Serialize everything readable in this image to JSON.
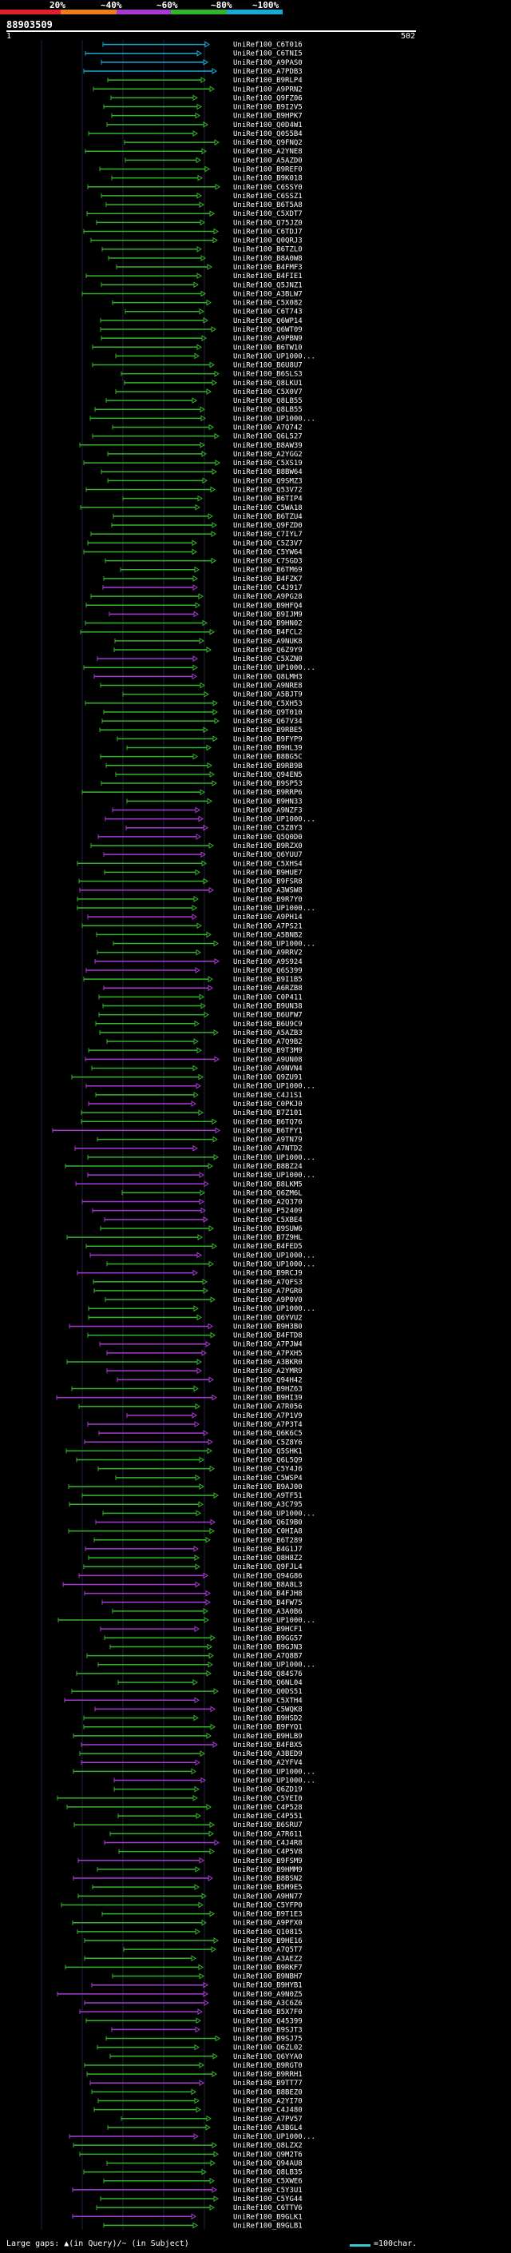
{
  "header": {
    "percent_labels": [
      "20%",
      "~40%",
      "~60%",
      "~80%",
      "~100%"
    ],
    "percent_colors": [
      "#e0202b",
      "#f07c1c",
      "#a73ad4",
      "#33b52a",
      "#1aa8d6"
    ],
    "query_id": "88903509",
    "ruler_start": "1",
    "ruler_end": "502"
  },
  "footer": {
    "left_text": "Large gaps: ▲(in Query)/~ (in Subject)",
    "right_text": "=100char."
  },
  "hits": [
    "UniRef100_C6T016",
    "UniRef100_C6TNI5",
    "UniRef100_A9PAS0",
    "UniRef100_A7PDB3",
    "UniRef100_B9RLP4",
    "UniRef100_A9PRN2",
    "UniRef100_Q9FZ06",
    "UniRef100_B9I2V5",
    "UniRef100_B9HPK7",
    "UniRef100_Q0D4W1",
    "UniRef100_Q0S5B4",
    "UniRef100_Q9FNQ2",
    "UniRef100_A2YNE8",
    "UniRef100_A5AZD0",
    "UniRef100_B9REF0",
    "UniRef100_B9K018",
    "UniRef100_C6SSY0",
    "UniRef100_C6SSZ1",
    "UniRef100_B6T5A8",
    "UniRef100_C5XDT7",
    "UniRef100_Q75JZ0",
    "UniRef100_C6TDJ7",
    "UniRef100_Q0QRJ3",
    "UniRef100_B6TZL0",
    "UniRef100_B8A0W8",
    "UniRef100_B4FMF3",
    "UniRef100_B4FIE1",
    "UniRef100_Q5JNZ1",
    "UniRef100_A3BLW7",
    "UniRef100_C5X082",
    "UniRef100_C6T743",
    "UniRef100_Q6WP14",
    "UniRef100_Q6WT09",
    "UniRef100_A9PBN9",
    "UniRef100_B6TW10",
    "UniRef100_UP1000...",
    "UniRef100_B6U8U7",
    "UniRef100_B6SLS3",
    "UniRef100_Q8LKU1",
    "UniRef100_C5X0V7",
    "UniRef100_Q8LB55",
    "UniRef100_Q8LB55",
    "UniRef100_UP1000...",
    "UniRef100_A7Q742",
    "UniRef100_Q6L527",
    "UniRef100_B8AW39",
    "UniRef100_A2YGG2",
    "UniRef100_C5XS19",
    "UniRef100_B8BW64",
    "UniRef100_Q9SMZ3",
    "UniRef100_Q53V72",
    "UniRef100_B6TIP4",
    "UniRef100_C5WA18",
    "UniRef100_B6TZU4",
    "UniRef100_Q9FZD0",
    "UniRef100_C7IYL7",
    "UniRef100_C5Z3V7",
    "UniRef100_C5YW64",
    "UniRef100_C7SGD3",
    "UniRef100_B6TM69",
    "UniRef100_B4FZK7",
    "UniRef100_C4J917",
    "UniRef100_A9PG28",
    "UniRef100_B9HFQ4",
    "UniRef100_B9IJM9",
    "UniRef100_B9HN02",
    "UniRef100_B4FCL2",
    "UniRef100_A9NUK8",
    "UniRef100_Q6Z9Y9",
    "UniRef100_C5XZN0",
    "UniRef100_UP1000...",
    "UniRef100_Q8LMH3",
    "UniRef100_A9NRE8",
    "UniRef100_A5BJT9",
    "UniRef100_C5XH53",
    "UniRef100_Q9T010",
    "UniRef100_Q67V34",
    "UniRef100_B9RBE5",
    "UniRef100_B9FYP9",
    "UniRef100_B9HL39",
    "UniRef100_B8BG5C",
    "UniRef100_B9RB9B",
    "UniRef100_Q94EN5",
    "UniRef100_B9SP53",
    "UniRef100_B9RRP6",
    "UniRef100_B9HN33",
    "UniRef100_A9NZF3",
    "UniRef100_UP1000...",
    "UniRef100_C5Z8Y3",
    "UniRef100_Q5Q0D0",
    "UniRef100_B9RZX0",
    "UniRef100_Q6YUU7",
    "UniRef100_C5XHS4",
    "UniRef100_B9HUE7",
    "UniRef100_B9FSR8",
    "UniRef100_A3WSW8",
    "UniRef100_B9R7Y0",
    "UniRef100_UP1000...",
    "UniRef100_A9PH14",
    "UniRef100_A7PS21",
    "UniRef100_A5BNB2",
    "UniRef100_UP1000...",
    "UniRef100_A9RRV2",
    "UniRef100_A9S924",
    "UniRef100_Q6S399",
    "UniRef100_B9I1B5",
    "UniRef100_A6RZB8",
    "UniRef100_C0P411",
    "UniRef100_B9UN38",
    "UniRef100_B6UFW7",
    "UniRef100_B6U9C9",
    "UniRef100_A5AZB3",
    "UniRef100_A7Q9B2",
    "UniRef100_B9T3M9",
    "UniRef100_A9UN08",
    "UniRef100_A9NVN4",
    "UniRef100_Q9ZU91",
    "UniRef100_UP1000...",
    "UniRef100_C4J1S1",
    "UniRef100_C0PKJ0",
    "UniRef100_B7Z101",
    "UniRef100_B6TQ76",
    "UniRef100_B6TFY1",
    "UniRef100_A9TN79",
    "UniRef100_A7NTD2",
    "UniRef100_UP1000...",
    "UniRef100_B8BZ24",
    "UniRef100_UP1000...",
    "UniRef100_B8LKM5",
    "UniRef100_Q6ZM6L",
    "UniRef100_A2Q370",
    "UniRef100_P52409",
    "UniRef100_C5XBE4",
    "UniRef100_B9SUW6",
    "UniRef100_B7Z9HL",
    "UniRef100_B4FED5",
    "UniRef100_UP1000...",
    "UniRef100_UP1000...",
    "UniRef100_B9RCJ9",
    "UniRef100_A7QFS3",
    "UniRef100_A7PGR0",
    "UniRef100_A9P0V0",
    "UniRef100_UP1000...",
    "UniRef100_Q6YVU2",
    "UniRef100_B9H3B0",
    "UniRef100_B4FTD8",
    "UniRef100_A7PJW4",
    "UniRef100_A7PXH5",
    "UniRef100_A3BKR0",
    "UniRef100_A2YMR9",
    "UniRef100_Q94H42",
    "UniRef100_B9HZ63",
    "UniRef100_B9HI39",
    "UniRef100_A7R056",
    "UniRef100_A7P1V9",
    "UniRef100_A7P3T4",
    "UniRef100_Q6K6C5",
    "UniRef100_C5Z8Y6",
    "UniRef100_Q5SHK1",
    "UniRef100_Q6L5Q9",
    "UniRef100_C5Y4J6",
    "UniRef100_C5WSP4",
    "UniRef100_B9AJ00",
    "UniRef100_A9TF51",
    "UniRef100_A3C795",
    "UniRef100_UP1000...",
    "UniRef100_Q6I9B0",
    "UniRef100_C0HIA8",
    "UniRef100_B6T289",
    "UniRef100_B4G1J7",
    "UniRef100_Q8H8Z2",
    "UniRef100_Q9FJL4",
    "UniRef100_Q94G86",
    "UniRef100_B8A8L3",
    "UniRef100_B4FJH8",
    "UniRef100_B4FW75",
    "UniRef100_A3A0B6",
    "UniRef100_UP1000...",
    "UniRef100_B9HCF1",
    "UniRef100_B9GG57",
    "UniRef100_B9GJN3",
    "UniRef100_A7Q8B7",
    "UniRef100_UP1000...",
    "UniRef100_Q84S76",
    "UniRef100_Q6NL04",
    "UniRef100_Q0DS51",
    "UniRef100_C5XTH4",
    "UniRef100_C5WQK8",
    "UniRef100_B9HSD2",
    "UniRef100_B9FYQ1",
    "UniRef100_B9HLB9",
    "UniRef100_B4FBX5",
    "UniRef100_A3BED9",
    "UniRef100_A2YFV4",
    "UniRef100_UP1000...",
    "UniRef100_UP1000...",
    "UniRef100_Q6ZD19",
    "UniRef100_C5YEI0",
    "UniRef100_C4P528",
    "UniRef100_C4P551",
    "UniRef100_B6SRU7",
    "UniRef100_A7R611",
    "UniRef100_C4J4R8",
    "UniRef100_C4P5V8",
    "UniRef100_B9FSM9",
    "UniRef100_B9HMM9",
    "UniRef100_B8BSN2",
    "UniRef100_B5M9E5",
    "UniRef100_A9HN77",
    "UniRef100_C5YFP0",
    "UniRef100_B9T1E3",
    "UniRef100_A9PFX0",
    "UniRef100_Q10815",
    "UniRef100_B9HE16",
    "UniRef100_A7Q5T7",
    "UniRef100_A3AEZ2",
    "UniRef100_B9RKF7",
    "UniRef100_B9NBH7",
    "UniRef100_B9HYB1",
    "UniRef100_A9N0Z5",
    "UniRef100_A3C6Z6",
    "UniRef100_B5X7F0",
    "UniRef100_Q45399",
    "UniRef100_B9SJT3",
    "UniRef100_B9SJ75",
    "UniRef100_Q6ZL02",
    "UniRef100_Q6YYA0",
    "UniRef100_B9RGT0",
    "UniRef100_B9RRH1",
    "UniRef100_B9TT77",
    "UniRef100_B8BEZ0",
    "UniRef100_A2YI70",
    "UniRef100_C4J480",
    "UniRef100_A7PV57",
    "UniRef100_A3BGL4",
    "UniRef100_UP1000...",
    "UniRef100_Q8LZX2",
    "UniRef100_Q9M2T6",
    "UniRef100_Q94AU8",
    "UniRef100_Q8LB35",
    "UniRef100_C5XWE6",
    "UniRef100_C5Y3U1",
    "UniRef100_C5YG44",
    "UniRef100_C6TTV6",
    "UniRef100_B9GLK1",
    "UniRef100_B9GLB1"
  ]
}
